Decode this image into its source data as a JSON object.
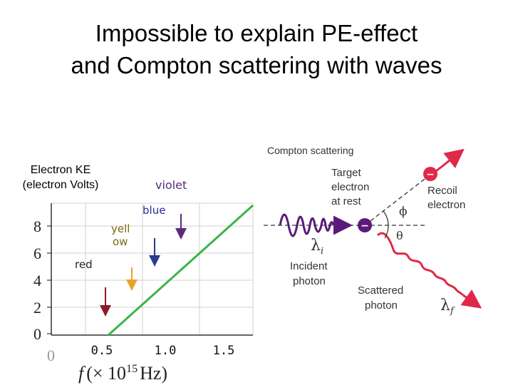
{
  "slide": {
    "title_line1": "Impossible to explain PE-effect",
    "title_line2": "and Compton scattering with waves"
  },
  "pe_graph": {
    "ylabel_line1": "Electron KE",
    "ylabel_line2": "(electron Volts)",
    "xlabel_f": "f",
    "xlabel_rest": "(× 10",
    "xlabel_exp": "15",
    "xlabel_unit": "Hz)",
    "y_ticks": [
      "0",
      "2",
      "4",
      "6",
      "8"
    ],
    "x_origin": "0",
    "x_ticks": [
      "0.5",
      "1.0",
      "1.5"
    ],
    "colors": {
      "line": "#3bb54a",
      "red": "#8b1a2b",
      "yellow": "#e8a22a",
      "blue": "#2b3a8c",
      "violet": "#5c2b7a",
      "label_violet": "#5a2a80",
      "label_blue": "#2b2b9a",
      "label_yellow": "#7a6a10",
      "label_red": "#222222"
    },
    "color_labels": {
      "violet": "violet",
      "blue": "blue",
      "yellow_line1": "yell",
      "yellow_line2": "ow",
      "red": "red"
    }
  },
  "compton": {
    "title": "Compton scattering",
    "target_line1": "Target",
    "target_line2": "electron",
    "target_line3": "at rest",
    "recoil_line1": "Recoil",
    "recoil_line2": "electron",
    "incident_line1": "Incident",
    "incident_line2": "photon",
    "scattered_line1": "Scattered",
    "scattered_line2": "photon",
    "lambda_i": "λ",
    "lambda_i_sub": "i",
    "lambda_f": "λ",
    "lambda_f_sub": "f",
    "phi": "ϕ",
    "theta": "θ",
    "electron_symbol": "−",
    "colors": {
      "incident": "#5a1a7a",
      "scattered": "#e0284a",
      "recoil": "#e0284a",
      "text": "#333333"
    }
  }
}
